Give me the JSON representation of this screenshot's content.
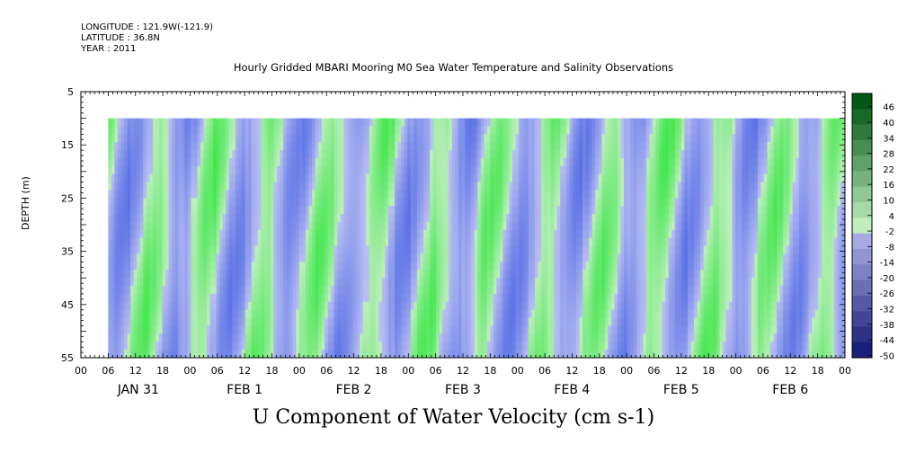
{
  "header": {
    "longitude": "LONGITUDE : 121.9W(-121.9)",
    "latitude": "LATITUDE : 36.8N",
    "year": "YEAR : 2011"
  },
  "chart_data": {
    "type": "heatmap",
    "title": "Hourly Gridded MBARI Mooring M0 Sea Water Temperature and Salinity Observations",
    "xlabel": "U Component of Water Velocity (cm s-1)",
    "ylabel": "DEPTH (m)",
    "ylim": [
      55,
      5
    ],
    "y_ticks": [
      "5",
      "15",
      "25",
      "35",
      "45",
      "55"
    ],
    "x_hour_ticks": [
      "00",
      "06",
      "12",
      "18",
      "00",
      "06",
      "12",
      "18",
      "00",
      "06",
      "12",
      "18",
      "00",
      "06",
      "12",
      "18",
      "00",
      "06",
      "12",
      "18",
      "00",
      "06",
      "12",
      "18",
      "00",
      "06",
      "12",
      "18",
      "00"
    ],
    "x_day_labels": [
      "JAN 31",
      "FEB  1",
      "FEB  2",
      "FEB  3",
      "FEB  4",
      "FEB  5",
      "FEB  6"
    ],
    "x_hours_range": [
      0,
      168
    ],
    "data_x_start_hour": 6,
    "data_depth_top": 10,
    "colorbar_levels": [
      "46",
      "40",
      "34",
      "28",
      "22",
      "16",
      "10",
      "4",
      "-2",
      "-8",
      "-14",
      "-20",
      "-26",
      "-32",
      "-38",
      "-44",
      "-50"
    ],
    "colorbar_range": [
      -50,
      50
    ],
    "field_min": -35,
    "field_max": 28
  }
}
